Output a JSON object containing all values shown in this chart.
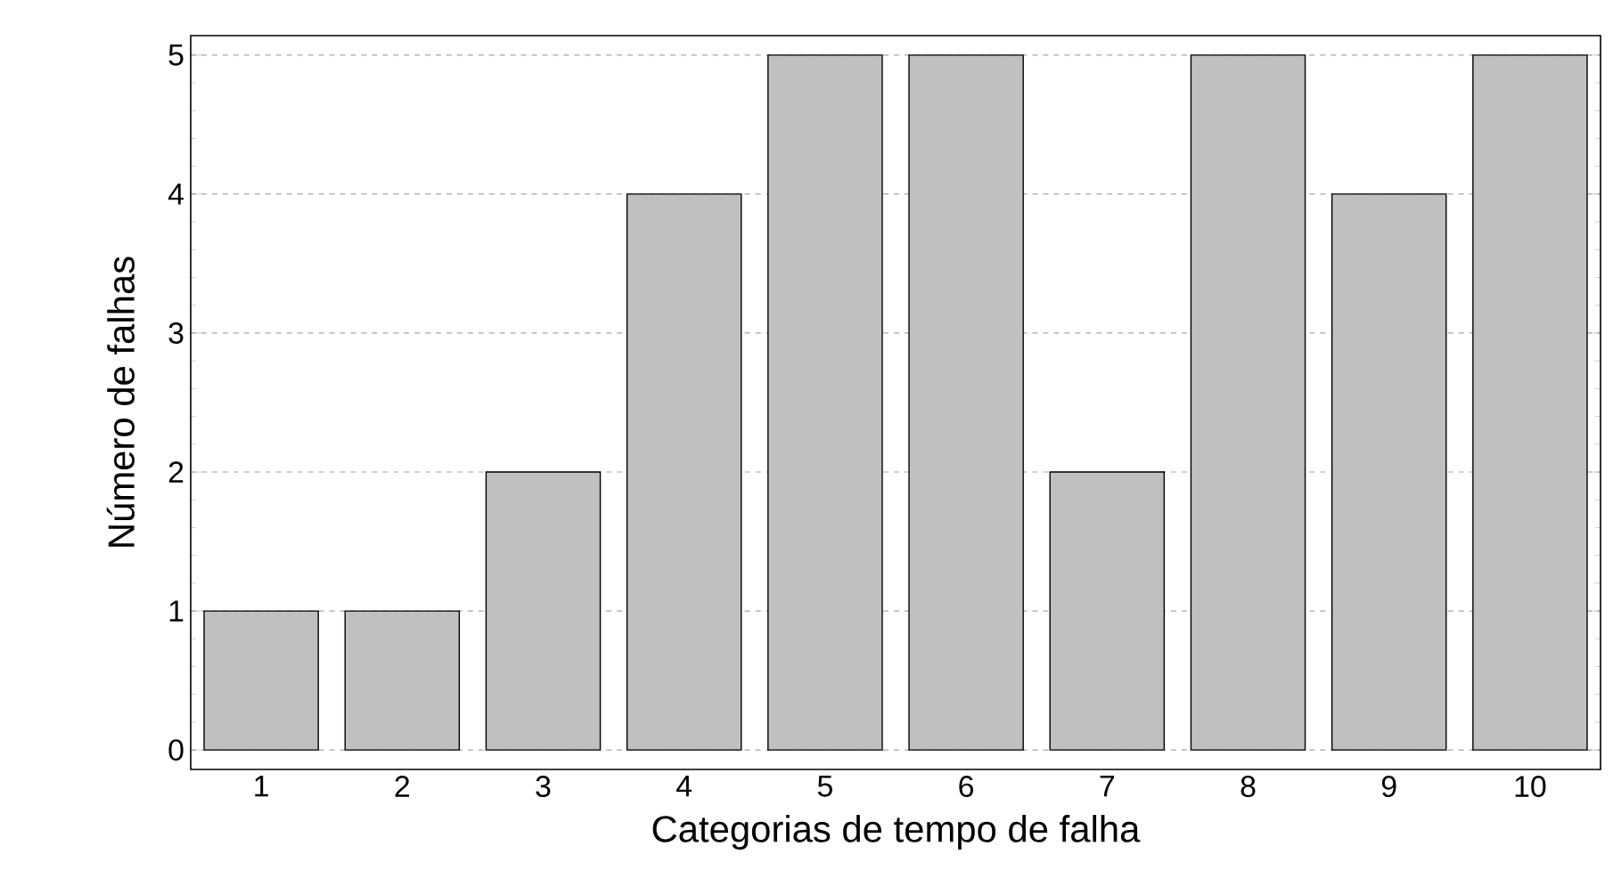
{
  "chart_data": {
    "type": "bar",
    "xlabel": "Categorias de tempo de falha",
    "ylabel": "Número de falhas",
    "categories": [
      "1",
      "2",
      "3",
      "4",
      "5",
      "6",
      "7",
      "8",
      "9",
      "10"
    ],
    "values": [
      1,
      1,
      2,
      4,
      5,
      5,
      2,
      5,
      4,
      5
    ],
    "color": "#c0c0c0",
    "ylim": [
      -0.14,
      5.14
    ],
    "yticks": [
      0,
      1,
      2,
      3,
      4,
      5
    ],
    "grid": "y"
  }
}
